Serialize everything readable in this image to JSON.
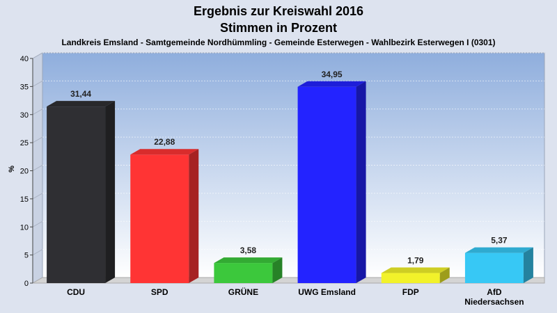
{
  "chart_data": {
    "type": "bar",
    "title": "Ergebnis zur Kreiswahl 2016",
    "title_line2": "Stimmen in Prozent",
    "subtitle": "Landkreis Emsland - Samtgemeinde Nordhümmling - Gemeinde Esterwegen - Wahlbezirk Esterwegen I (0301)",
    "ylabel": "%",
    "ylim": [
      0,
      40
    ],
    "yticks": [
      "0",
      "5",
      "10",
      "15",
      "20",
      "25",
      "30",
      "35",
      "40"
    ],
    "grid": true,
    "categories": [
      [
        "CDU"
      ],
      [
        "SPD"
      ],
      [
        "GRÜNE"
      ],
      [
        "UWG Emsland"
      ],
      [
        "FDP"
      ],
      [
        "AfD",
        "Niedersachsen"
      ]
    ],
    "values": [
      31.44,
      22.88,
      3.58,
      34.95,
      1.79,
      5.37
    ],
    "value_labels": [
      "31,44",
      "22,88",
      "3,58",
      "34,95",
      "1,79",
      "5,37"
    ],
    "colors": [
      "#2f2f33",
      "#ff3434",
      "#3cc83c",
      "#2323ff",
      "#f2f22a",
      "#37c8f5"
    ]
  }
}
